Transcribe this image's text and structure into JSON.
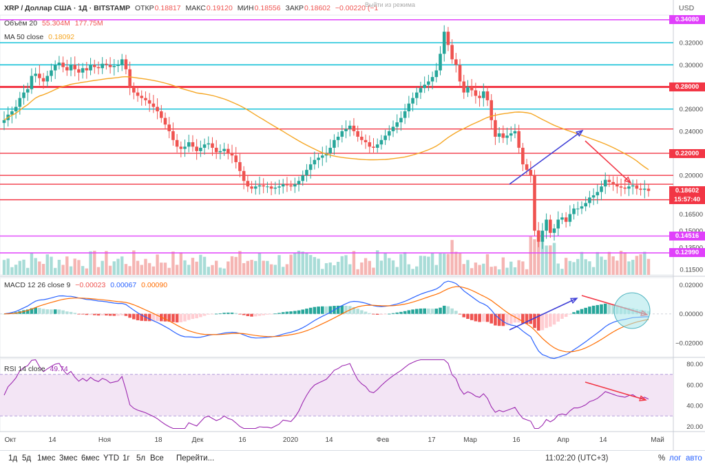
{
  "header": {
    "symbol": "XRP / Доллар США · 1Д · BITSTAMP",
    "open_label": "ОТКР",
    "open": "0.18817",
    "high_label": "МАКС",
    "high": "0.19120",
    "low_label": "МИН",
    "low": "0.18556",
    "close_label": "ЗАКР",
    "close": "0.18602",
    "change": "−0.00220 (−1",
    "watermark": "Выйти из режима",
    "currency": "USD"
  },
  "legends": {
    "volume": {
      "label": "Объём 20",
      "v1": "55.304M",
      "v2": "177.75M"
    },
    "ma": {
      "label": "MA 50 close",
      "v": "0.18092"
    },
    "macd": {
      "label": "MACD 12 26 close 9",
      "v1": "−0.00023",
      "v2": "0.00067",
      "v3": "0.00090"
    },
    "rsi": {
      "label": "RSI 14 close",
      "v": "49.74"
    }
  },
  "price_axis": {
    "ticks": [
      "0.34080",
      "0.32000",
      "0.30000",
      "0.28000",
      "0.26000",
      "0.24000",
      "0.22000",
      "0.20000",
      "0.18602",
      "0.16500",
      "0.15000",
      "0.14516",
      "0.13500",
      "0.12990",
      "0.11500"
    ],
    "highlight_labels": [
      {
        "text": "0.34080",
        "color": "#e040fb"
      },
      {
        "text": "0.28000",
        "color": "#f23645"
      },
      {
        "text": "0.22000",
        "color": "#f23645"
      },
      {
        "text": "0.18602",
        "color": "#f23645"
      },
      {
        "text": "15:57:40",
        "color": "#f23645"
      },
      {
        "text": "0.14516",
        "color": "#e040fb"
      },
      {
        "text": "0.12990",
        "color": "#e040fb"
      }
    ]
  },
  "macd_axis": {
    "ticks": [
      "0.02000",
      "0.00000",
      "−0.02000"
    ]
  },
  "rsi_axis": {
    "ticks": [
      "80.00",
      "60.00",
      "40.00",
      "20.00"
    ]
  },
  "time_axis": {
    "labels": [
      "Окт",
      "14",
      "Ноя",
      "18",
      "Дек",
      "16",
      "2020",
      "14",
      "Фев",
      "17",
      "Мар",
      "16",
      "Апр",
      "14",
      "Май"
    ]
  },
  "toolbar": {
    "timeframes": [
      "1д",
      "5д",
      "1мес",
      "3мес",
      "6мес",
      "YTD",
      "1г",
      "5л",
      "Все"
    ],
    "goto": "Перейти...",
    "clock": "11:02:20 (UTC+3)",
    "pct": "%",
    "log": "лог",
    "auto": "авто"
  },
  "colors": {
    "up": "#26a69a",
    "down": "#ef5350",
    "ma": "#f5a623",
    "macd": "#2962ff",
    "signal": "#ff6d00",
    "rsi": "#9c27b0",
    "cyan": "#00bcd4",
    "magenta": "#e040fb",
    "red": "#f23645"
  },
  "chart_data": [
    {
      "type": "candlestick",
      "title": "XRP / Доллар США · 1Д · BITSTAMP",
      "ylim": [
        0.11,
        0.345
      ],
      "x_dates": [
        "2019-10-01",
        "2020-04-22"
      ],
      "closes": [
        0.25,
        0.255,
        0.258,
        0.262,
        0.27,
        0.275,
        0.278,
        0.29,
        0.292,
        0.288,
        0.285,
        0.29,
        0.295,
        0.3,
        0.302,
        0.298,
        0.295,
        0.3,
        0.296,
        0.293,
        0.297,
        0.295,
        0.3,
        0.298,
        0.297,
        0.301,
        0.3,
        0.298,
        0.299,
        0.3,
        0.305,
        0.296,
        0.28,
        0.275,
        0.272,
        0.27,
        0.268,
        0.265,
        0.262,
        0.258,
        0.252,
        0.246,
        0.24,
        0.232,
        0.226,
        0.224,
        0.226,
        0.23,
        0.226,
        0.222,
        0.225,
        0.228,
        0.229,
        0.225,
        0.221,
        0.222,
        0.224,
        0.22,
        0.218,
        0.212,
        0.204,
        0.195,
        0.19,
        0.188,
        0.19,
        0.191,
        0.19,
        0.19,
        0.188,
        0.189,
        0.19,
        0.192,
        0.191,
        0.19,
        0.192,
        0.195,
        0.2,
        0.205,
        0.21,
        0.214,
        0.216,
        0.218,
        0.22,
        0.225,
        0.232,
        0.235,
        0.24,
        0.242,
        0.245,
        0.24,
        0.235,
        0.232,
        0.23,
        0.226,
        0.225,
        0.228,
        0.232,
        0.236,
        0.24,
        0.244,
        0.248,
        0.252,
        0.258,
        0.265,
        0.27,
        0.275,
        0.279,
        0.282,
        0.285,
        0.289,
        0.295,
        0.31,
        0.33,
        0.318,
        0.305,
        0.3,
        0.285,
        0.275,
        0.28,
        0.277,
        0.272,
        0.27,
        0.276,
        0.268,
        0.25,
        0.235,
        0.238,
        0.234,
        0.236,
        0.238,
        0.24,
        0.225,
        0.21,
        0.205,
        0.2,
        0.15,
        0.14,
        0.15,
        0.16,
        0.148,
        0.152,
        0.16,
        0.162,
        0.158,
        0.165,
        0.17,
        0.17,
        0.172,
        0.175,
        0.18,
        0.182,
        0.185,
        0.19,
        0.196,
        0.194,
        0.192,
        0.19,
        0.189,
        0.188,
        0.19,
        0.191,
        0.188,
        0.187,
        0.188,
        0.186
      ]
    },
    {
      "type": "bar",
      "title": "Объём 20",
      "note": "volume histogram in the price pane, one bar per candle"
    },
    {
      "type": "line",
      "title": "MACD 12 26 close 9",
      "ylim": [
        -0.03,
        0.025
      ],
      "series": [
        {
          "name": "MACD"
        },
        {
          "name": "signal"
        },
        {
          "name": "histogram"
        }
      ]
    },
    {
      "type": "line",
      "title": "RSI 14 close",
      "ylim": [
        20,
        85
      ],
      "band": [
        30,
        70
      ],
      "series": [
        {
          "name": "RSI"
        }
      ]
    }
  ]
}
